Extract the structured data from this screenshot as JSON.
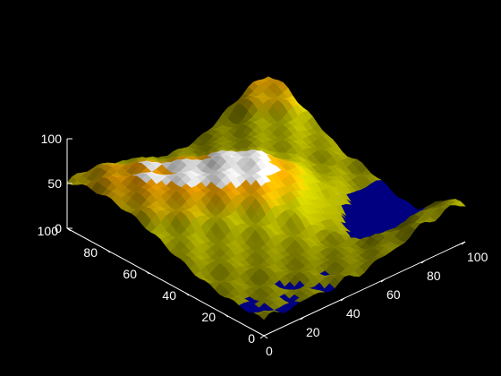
{
  "chart_data": {
    "type": "surface",
    "title": "",
    "xlabel": "",
    "ylabel": "",
    "zlabel": "",
    "xlim": [
      0,
      100
    ],
    "ylim": [
      0,
      100
    ],
    "zlim": [
      0,
      100
    ],
    "x_ticks": [
      "0",
      "20",
      "40",
      "60",
      "80",
      "100"
    ],
    "y_ticks": [
      "0",
      "20",
      "40",
      "60",
      "80",
      "100"
    ],
    "z_ticks": [
      "0",
      "50",
      "100"
    ],
    "grid": false,
    "background": "#000000",
    "colors": {
      "water": "#000080",
      "low": "#8c8c00",
      "mid": "#b4b400",
      "high": "#ffa500",
      "peak": "#ffffff"
    },
    "water_level": 18,
    "terrain_peaks": [
      {
        "x": 50,
        "y": 55,
        "z": 72
      },
      {
        "x": 98,
        "y": 98,
        "z": 66
      },
      {
        "x": 90,
        "y": 5,
        "z": 48
      },
      {
        "x": 3,
        "y": 95,
        "z": 45
      },
      {
        "x": 8,
        "y": 60,
        "z": 40
      },
      {
        "x": 25,
        "y": 80,
        "z": 42
      }
    ],
    "water_region": {
      "x": 85,
      "y": 25,
      "depth": 40
    }
  }
}
